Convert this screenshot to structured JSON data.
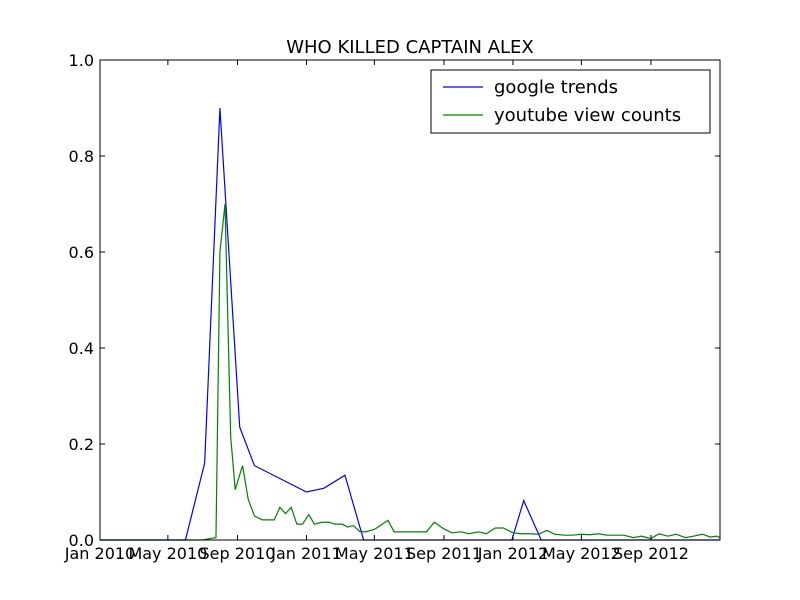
{
  "chart_data": {
    "type": "line",
    "title": "WHO KILLED CAPTAIN ALEX",
    "xlabel": "",
    "ylabel": "",
    "x_axis": {
      "type": "date",
      "range": [
        "2010-01-01",
        "2013-01-01"
      ],
      "ticks": [
        {
          "date": "2010-01-01",
          "label": "Jan 2010"
        },
        {
          "date": "2010-05-01",
          "label": "May 2010"
        },
        {
          "date": "2010-09-01",
          "label": "Sep 2010"
        },
        {
          "date": "2011-01-01",
          "label": "Jan 2011"
        },
        {
          "date": "2011-05-01",
          "label": "May 2011"
        },
        {
          "date": "2011-09-01",
          "label": "Sep 2011"
        },
        {
          "date": "2012-01-01",
          "label": "Jan 2012"
        },
        {
          "date": "2012-05-01",
          "label": "May 2012"
        },
        {
          "date": "2012-09-01",
          "label": "Sep 2012"
        }
      ]
    },
    "y_axis": {
      "range": [
        0,
        1.0
      ],
      "ticks": [
        {
          "value": 0.0,
          "label": "0.0"
        },
        {
          "value": 0.2,
          "label": "0.2"
        },
        {
          "value": 0.4,
          "label": "0.4"
        },
        {
          "value": 0.6,
          "label": "0.6"
        },
        {
          "value": 0.8,
          "label": "0.8"
        },
        {
          "value": 1.0,
          "label": "1.0"
        }
      ]
    },
    "grid": false,
    "legend": {
      "position": "top-right"
    },
    "series": [
      {
        "name": "google trends",
        "color": "#0000ff",
        "points": [
          [
            "2010-01-01",
            0
          ],
          [
            "2010-06-01",
            0
          ],
          [
            "2010-07-05",
            0.16
          ],
          [
            "2010-08-01",
            0.9
          ],
          [
            "2010-09-05",
            0.235
          ],
          [
            "2010-10-01",
            0.155
          ],
          [
            "2011-01-01",
            0.1
          ],
          [
            "2011-02-01",
            0.108
          ],
          [
            "2011-03-10",
            0.135
          ],
          [
            "2011-04-12",
            0
          ],
          [
            "2011-12-30",
            0
          ],
          [
            "2012-01-20",
            0.082
          ],
          [
            "2012-02-20",
            0
          ],
          [
            "2013-01-01",
            0
          ]
        ]
      },
      {
        "name": "youtube view counts",
        "color": "#008000",
        "points": [
          [
            "2010-01-01",
            0
          ],
          [
            "2010-07-01",
            0
          ],
          [
            "2010-07-15",
            0.003
          ],
          [
            "2010-07-25",
            0.005
          ],
          [
            "2010-08-01",
            0.6
          ],
          [
            "2010-08-10",
            0.7
          ],
          [
            "2010-08-20",
            0.215
          ],
          [
            "2010-08-28",
            0.105
          ],
          [
            "2010-09-10",
            0.155
          ],
          [
            "2010-09-20",
            0.085
          ],
          [
            "2010-10-01",
            0.05
          ],
          [
            "2010-10-15",
            0.042
          ],
          [
            "2010-11-05",
            0.042
          ],
          [
            "2010-11-15",
            0.068
          ],
          [
            "2010-11-25",
            0.055
          ],
          [
            "2010-12-05",
            0.068
          ],
          [
            "2010-12-15",
            0.033
          ],
          [
            "2010-12-25",
            0.033
          ],
          [
            "2011-01-05",
            0.053
          ],
          [
            "2011-01-15",
            0.033
          ],
          [
            "2011-01-28",
            0.037
          ],
          [
            "2011-02-10",
            0.037
          ],
          [
            "2011-02-20",
            0.033
          ],
          [
            "2011-03-05",
            0.033
          ],
          [
            "2011-03-15",
            0.027
          ],
          [
            "2011-03-25",
            0.03
          ],
          [
            "2011-04-05",
            0.018
          ],
          [
            "2011-04-15",
            0.017
          ],
          [
            "2011-05-01",
            0.022
          ],
          [
            "2011-05-15",
            0.033
          ],
          [
            "2011-05-25",
            0.041
          ],
          [
            "2011-06-05",
            0.017
          ],
          [
            "2011-07-01",
            0.017
          ],
          [
            "2011-08-01",
            0.017
          ],
          [
            "2011-08-15",
            0.037
          ],
          [
            "2011-09-01",
            0.023
          ],
          [
            "2011-09-15",
            0.015
          ],
          [
            "2011-10-01",
            0.017
          ],
          [
            "2011-10-15",
            0.013
          ],
          [
            "2011-11-01",
            0.017
          ],
          [
            "2011-11-15",
            0.013
          ],
          [
            "2011-12-01",
            0.025
          ],
          [
            "2011-12-15",
            0.025
          ],
          [
            "2012-01-01",
            0.015
          ],
          [
            "2012-01-15",
            0.013
          ],
          [
            "2012-02-01",
            0.013
          ],
          [
            "2012-02-15",
            0.012
          ],
          [
            "2012-03-01",
            0.02
          ],
          [
            "2012-03-15",
            0.012
          ],
          [
            "2012-04-01",
            0.01
          ],
          [
            "2012-04-15",
            0.01
          ],
          [
            "2012-05-01",
            0.012
          ],
          [
            "2012-05-15",
            0.011
          ],
          [
            "2012-06-01",
            0.013
          ],
          [
            "2012-06-15",
            0.01
          ],
          [
            "2012-07-01",
            0.01
          ],
          [
            "2012-07-15",
            0.01
          ],
          [
            "2012-08-01",
            0.005
          ],
          [
            "2012-08-15",
            0.008
          ],
          [
            "2012-09-01",
            0.003
          ],
          [
            "2012-09-15",
            0.013
          ],
          [
            "2012-10-01",
            0.008
          ],
          [
            "2012-10-15",
            0.012
          ],
          [
            "2012-11-01",
            0.005
          ],
          [
            "2012-11-15",
            0.008
          ],
          [
            "2012-12-01",
            0.012
          ],
          [
            "2012-12-15",
            0.006
          ],
          [
            "2012-12-25",
            0.008
          ],
          [
            "2013-01-01",
            0.005
          ]
        ]
      }
    ]
  }
}
